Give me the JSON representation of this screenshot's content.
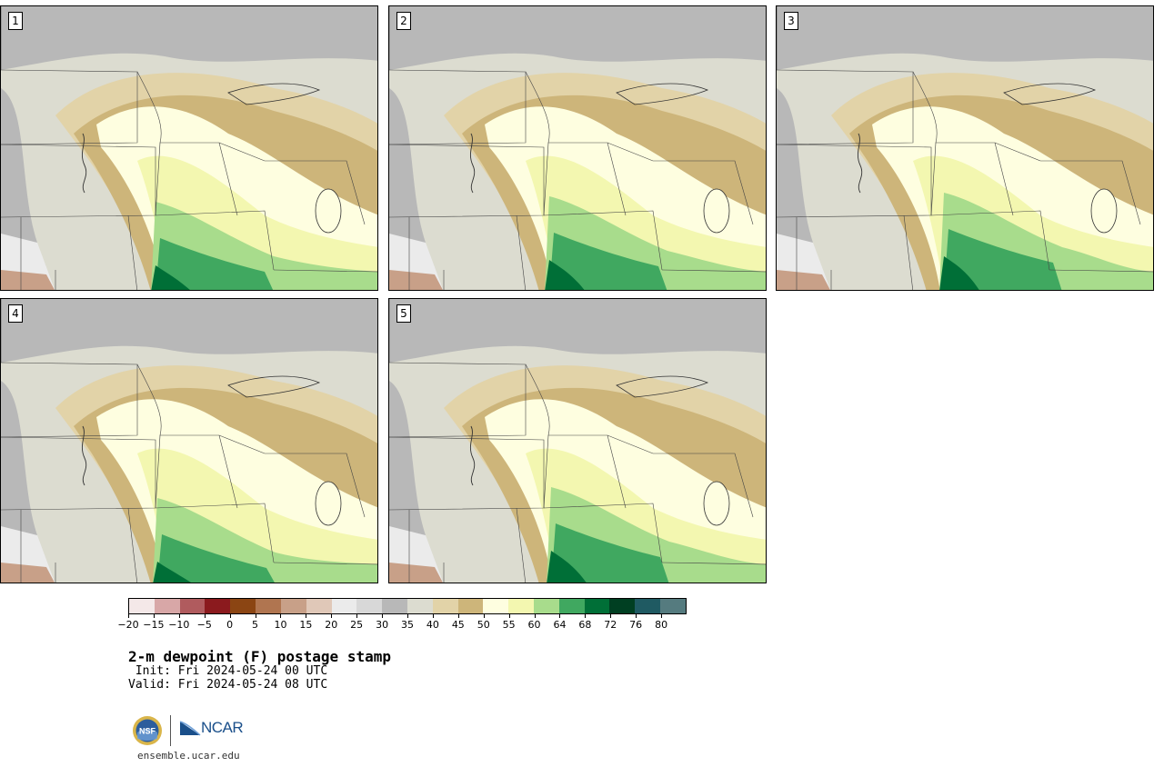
{
  "stamps": [
    {
      "label": "1"
    },
    {
      "label": "2"
    },
    {
      "label": "3"
    },
    {
      "label": "4"
    },
    {
      "label": "5"
    }
  ],
  "colorbar": {
    "colors": [
      "#f4e8e8",
      "#d8a7a7",
      "#b05b5e",
      "#8b1a1e",
      "#8b4513",
      "#b07550",
      "#c8a088",
      "#e0c8b8",
      "#ebebeb",
      "#d8d8d8",
      "#b8b8b8",
      "#dcdcd0",
      "#e2d3a8",
      "#cdb57a",
      "#fefee0",
      "#f3f7b0",
      "#a8dc8c",
      "#40a860",
      "#006f37",
      "#003f22",
      "#1f5a62",
      "#557b7f"
    ],
    "ticks": [
      "−20",
      "−15",
      "−10",
      "−5",
      "0",
      "5",
      "10",
      "15",
      "20",
      "25",
      "30",
      "35",
      "40",
      "45",
      "50",
      "55",
      "60",
      "64",
      "68",
      "72",
      "76",
      "80"
    ]
  },
  "map_palette": {
    "very_dry": "#b8b8b8",
    "dry": "#dcdcd0",
    "light_tan": "#e2d3a8",
    "tan": "#cdb57a",
    "pale": "#fefee0",
    "light_yellow": "#f3f7b0",
    "light_green": "#a8dc8c",
    "green": "#40a860",
    "dark_green": "#006f37",
    "pink": "#c8a088",
    "light_grey": "#ebebeb"
  },
  "title": "2-m dewpoint (F) postage stamp",
  "init_line": " Init: Fri 2024-05-24 00 UTC",
  "valid_line": "Valid: Fri 2024-05-24 08 UTC",
  "logo": {
    "nsf": "NSF",
    "ncar": "NCAR"
  },
  "site": "ensemble.ucar.edu"
}
